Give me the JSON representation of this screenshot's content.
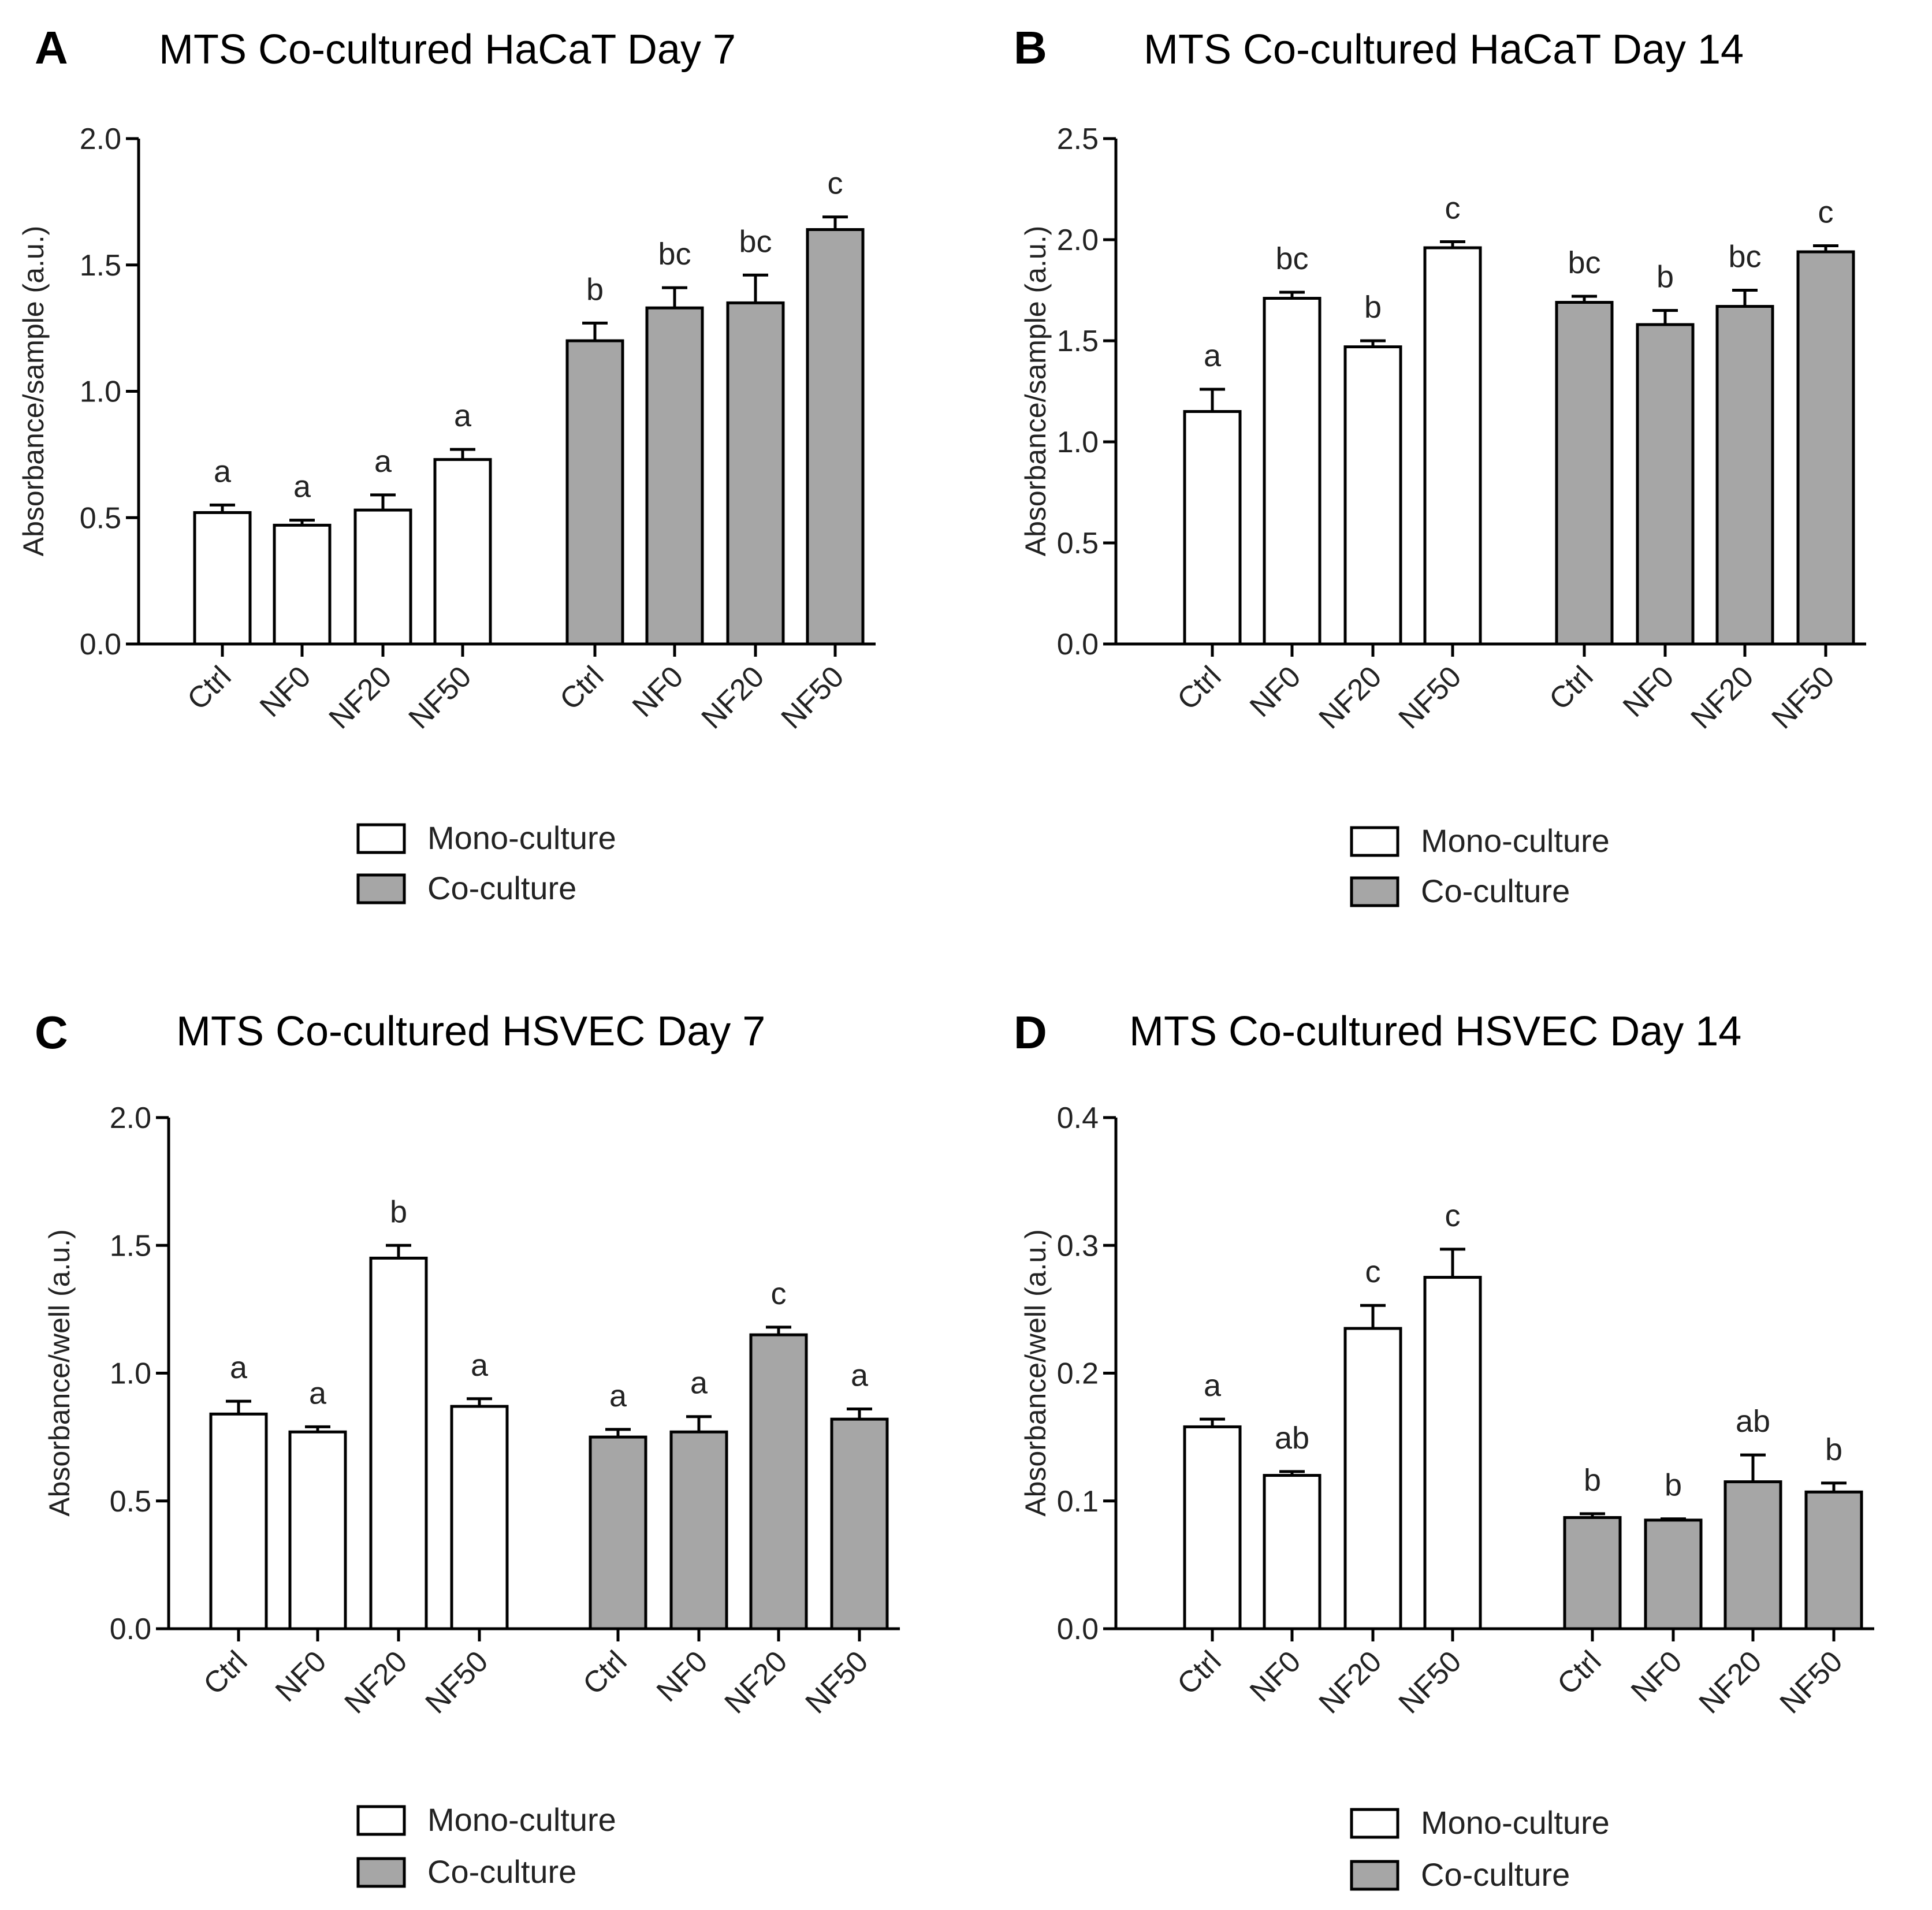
{
  "colors": {
    "mono": "#ffffff",
    "co": "#a6a6a6",
    "stroke": "#000000"
  },
  "chart_data": [
    {
      "letter": "A",
      "type": "bar",
      "title": "MTS Co-cultured HaCaT Day 7",
      "ylabel": "Absorbance/sample (a.u.)",
      "ylim": [
        0,
        2.0
      ],
      "yticks": [
        "0.0",
        "0.5",
        "1.0",
        "1.5",
        "2.0"
      ],
      "grid": false,
      "legend_position": "bottom-center",
      "categories": [
        "Ctrl",
        "NF0",
        "NF20",
        "NF50"
      ],
      "series": [
        {
          "name": "Mono-culture",
          "values": [
            0.52,
            0.47,
            0.53,
            0.73
          ],
          "errors": [
            0.03,
            0.02,
            0.06,
            0.04
          ],
          "labels": [
            "a",
            "a",
            "a",
            "a"
          ]
        },
        {
          "name": "Co-culture",
          "values": [
            1.2,
            1.33,
            1.35,
            1.64
          ],
          "errors": [
            0.07,
            0.08,
            0.11,
            0.05
          ],
          "labels": [
            "b",
            "bc",
            "bc",
            "c"
          ]
        }
      ]
    },
    {
      "letter": "B",
      "type": "bar",
      "title": "MTS Co-cultured HaCaT Day 14",
      "ylabel": "Absorbance/sample (a.u.)",
      "ylim": [
        0,
        2.5
      ],
      "yticks": [
        "0.0",
        "0.5",
        "1.0",
        "1.5",
        "2.0",
        "2.5"
      ],
      "grid": false,
      "legend_position": "bottom-center",
      "categories": [
        "Ctrl",
        "NF0",
        "NF20",
        "NF50"
      ],
      "series": [
        {
          "name": "Mono-culture",
          "values": [
            1.15,
            1.71,
            1.47,
            1.96
          ],
          "errors": [
            0.11,
            0.03,
            0.03,
            0.03
          ],
          "labels": [
            "a",
            "bc",
            "b",
            "c"
          ]
        },
        {
          "name": "Co-culture",
          "values": [
            1.69,
            1.58,
            1.67,
            1.94
          ],
          "errors": [
            0.03,
            0.07,
            0.08,
            0.03
          ],
          "labels": [
            "bc",
            "b",
            "bc",
            "c"
          ]
        }
      ]
    },
    {
      "letter": "C",
      "type": "bar",
      "title": "MTS Co-cultured HSVEC Day 7",
      "ylabel": "Absorbance/well (a.u.)",
      "ylim": [
        0,
        2.0
      ],
      "yticks": [
        "0.0",
        "0.5",
        "1.0",
        "1.5",
        "2.0"
      ],
      "grid": false,
      "legend_position": "bottom-center",
      "categories": [
        "Ctrl",
        "NF0",
        "NF20",
        "NF50"
      ],
      "series": [
        {
          "name": "Mono-culture",
          "values": [
            0.84,
            0.77,
            1.45,
            0.87
          ],
          "errors": [
            0.05,
            0.02,
            0.05,
            0.03
          ],
          "labels": [
            "a",
            "a",
            "b",
            "a"
          ]
        },
        {
          "name": "Co-culture",
          "values": [
            0.75,
            0.77,
            1.15,
            0.82
          ],
          "errors": [
            0.03,
            0.06,
            0.03,
            0.04
          ],
          "labels": [
            "a",
            "a",
            "c",
            "a"
          ]
        }
      ]
    },
    {
      "letter": "D",
      "type": "bar",
      "title": "MTS Co-cultured HSVEC  Day 14",
      "ylabel": "Absorbance/well (a.u.)",
      "ylim": [
        0,
        0.4
      ],
      "yticks": [
        "0.0",
        "0.1",
        "0.2",
        "0.3",
        "0.4"
      ],
      "grid": false,
      "legend_position": "bottom-center",
      "categories": [
        "Ctrl",
        "NF0",
        "NF20",
        "NF50"
      ],
      "series": [
        {
          "name": "Mono-culture",
          "values": [
            0.158,
            0.12,
            0.235,
            0.275
          ],
          "errors": [
            0.006,
            0.003,
            0.018,
            0.022
          ],
          "labels": [
            "a",
            "ab",
            "c",
            "c"
          ]
        },
        {
          "name": "Co-culture",
          "values": [
            0.087,
            0.085,
            0.115,
            0.107
          ],
          "errors": [
            0.003,
            0.001,
            0.021,
            0.007
          ],
          "labels": [
            "b",
            "b",
            "ab",
            "b"
          ]
        }
      ]
    }
  ]
}
